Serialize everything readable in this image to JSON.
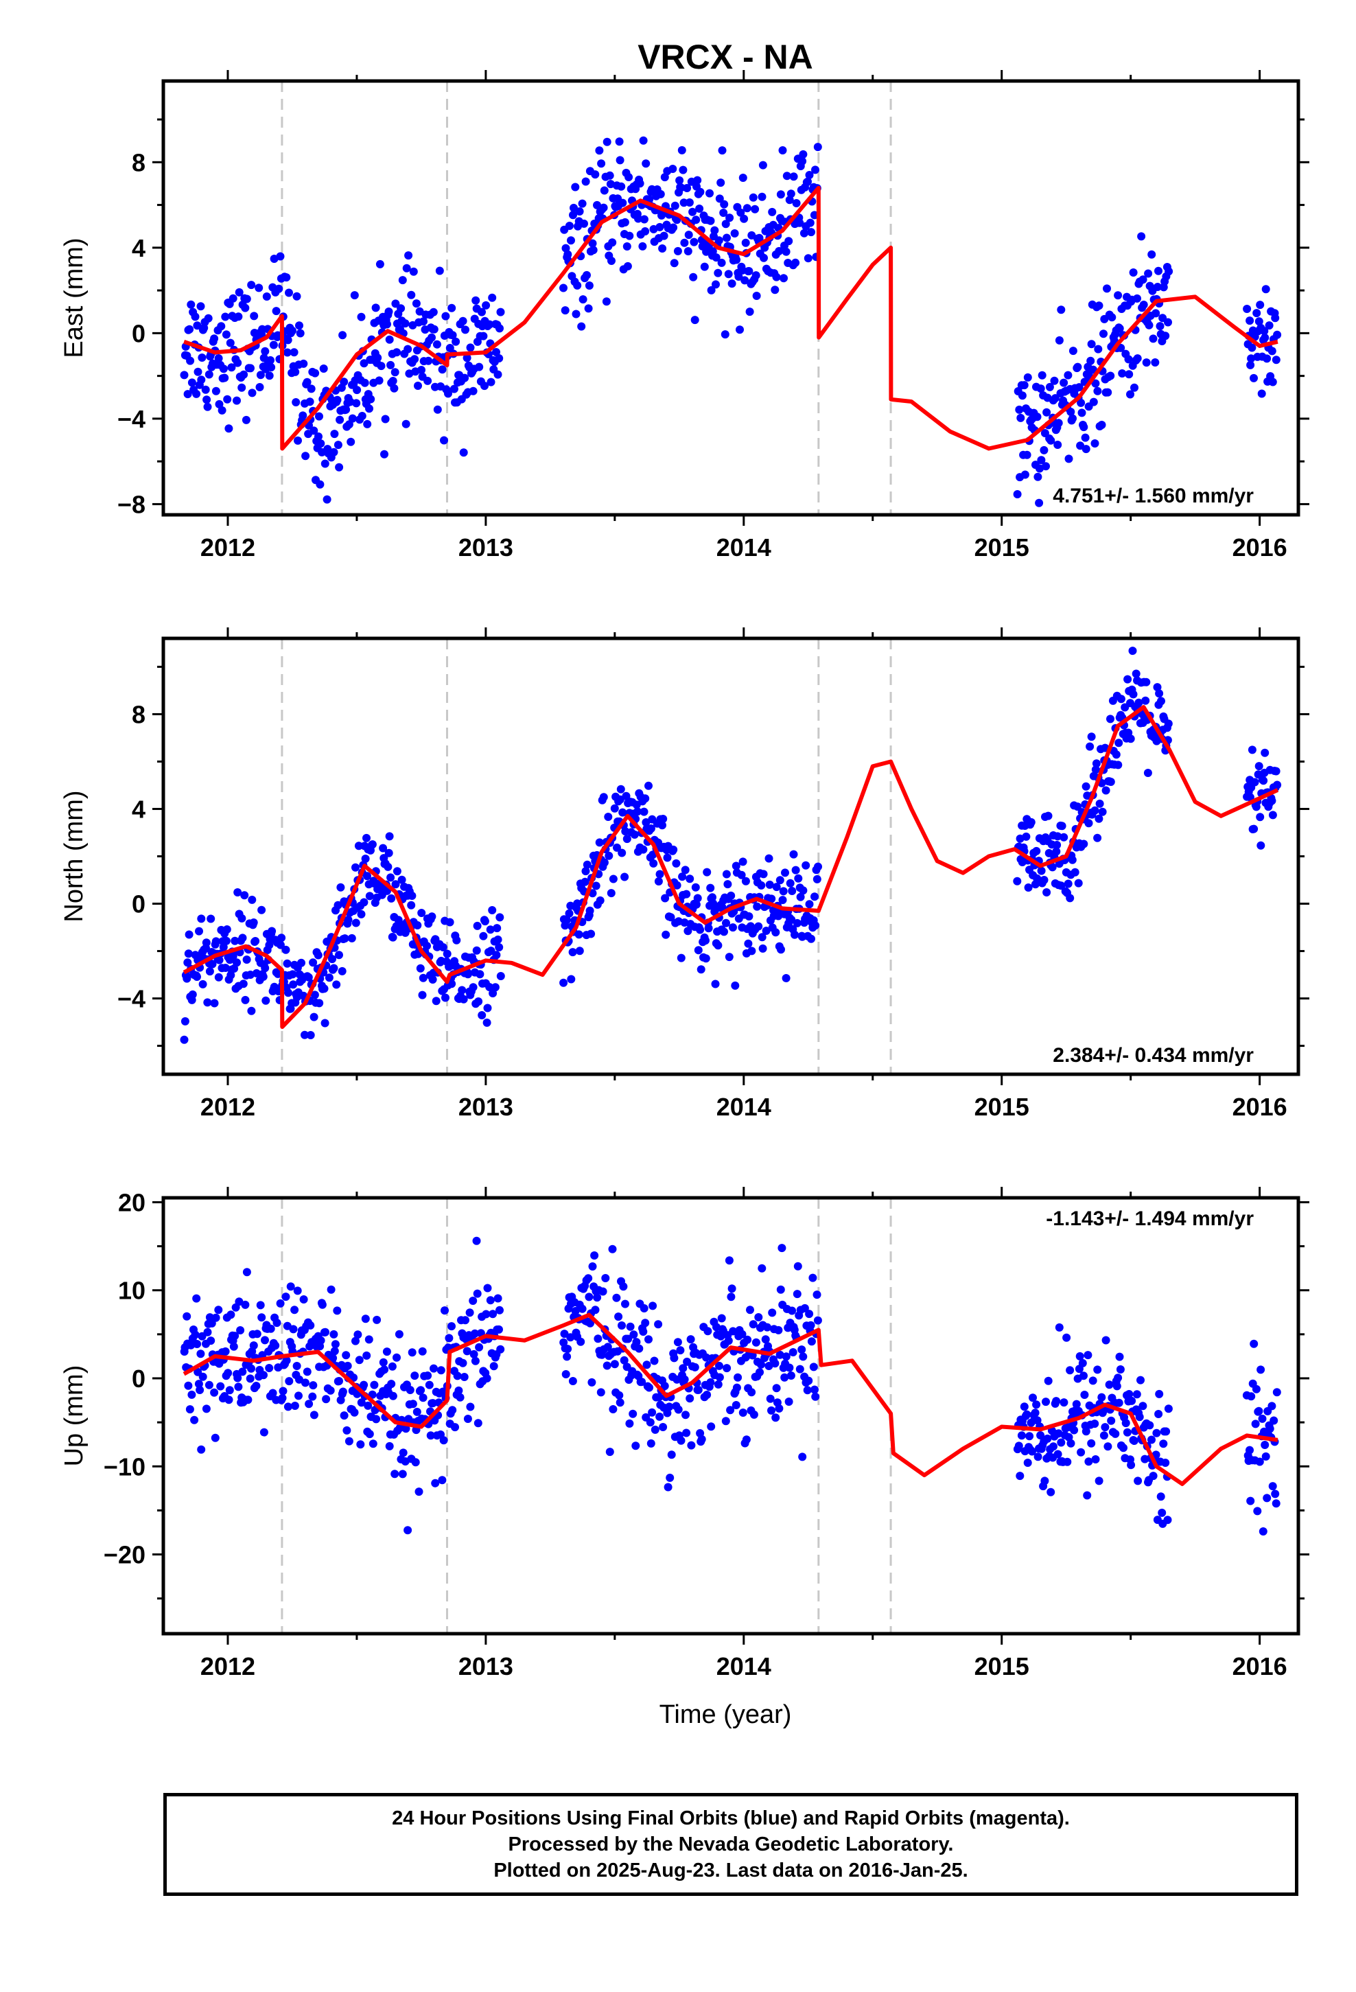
{
  "chart_data": [
    {
      "type": "scatter",
      "title": "VRCX - NA",
      "xlabel": "",
      "ylabel": "East (mm)",
      "xlim": [
        2011.75,
        2016.15
      ],
      "ylim": [
        -8.5,
        11.8
      ],
      "xticks": [
        2012,
        2013,
        2014,
        2015,
        2016
      ],
      "yticks": [
        -8,
        -4,
        0,
        4,
        8
      ],
      "grid": false,
      "rate_label": "4.751+/- 1.560 mm/yr",
      "rate_position": "bottom-right",
      "breaks": [
        2012.21,
        2012.85,
        2014.29,
        2014.57
      ],
      "colors": {
        "points": "#0000ff",
        "model": "#ff0000",
        "breaks": "#c8c8c8"
      },
      "data_segments": [
        [
          2011.83,
          2012.21
        ],
        [
          2012.21,
          2013.06
        ],
        [
          2013.3,
          2014.29
        ],
        [
          2015.06,
          2015.65
        ],
        [
          2015.95,
          2016.07
        ]
      ],
      "model": {
        "x": [
          2011.83,
          2011.95,
          2012.05,
          2012.15,
          2012.21,
          2012.211,
          2012.35,
          2012.5,
          2012.62,
          2012.75,
          2012.85,
          2012.851,
          2013.0,
          2013.15,
          2013.3,
          2013.45,
          2013.6,
          2013.75,
          2013.9,
          2014.0,
          2014.15,
          2014.29,
          2014.291,
          2014.4,
          2014.5,
          2014.57,
          2014.571,
          2014.65,
          2014.8,
          2014.95,
          2015.1,
          2015.3,
          2015.45,
          2015.6,
          2015.75,
          2015.9,
          2016.0,
          2016.07
        ],
        "y": [
          -0.4,
          -0.9,
          -0.8,
          -0.2,
          0.8,
          -5.4,
          -3.5,
          -1.0,
          0.1,
          -0.6,
          -1.5,
          -1.0,
          -0.9,
          0.5,
          2.8,
          5.2,
          6.2,
          5.5,
          4.0,
          3.7,
          4.8,
          6.8,
          -0.2,
          1.6,
          3.2,
          4.0,
          -3.1,
          -3.2,
          -4.6,
          -5.4,
          -5.0,
          -3.0,
          -0.5,
          1.5,
          1.7,
          0.3,
          -0.6,
          -0.4
        ]
      },
      "fit": {
        "pre": {
          "x": [
            2011.83,
            2011.95,
            2012.05,
            2012.15,
            2012.21,
            2012.35,
            2012.5,
            2012.62,
            2012.75,
            2012.85,
            2013.0,
            2013.15,
            2013.3,
            2013.45,
            2013.6,
            2013.75,
            2013.9,
            2014.0,
            2014.15,
            2014.29
          ],
          "y": [
            -0.4,
            -0.9,
            -0.8,
            -0.2,
            0.8,
            -4.9,
            -2.4,
            -0.2,
            -0.6,
            -1.5,
            -0.9,
            0.5,
            2.8,
            5.2,
            6.2,
            5.5,
            4.0,
            3.7,
            4.8,
            6.8
          ]
        },
        "post": {
          "x": [
            2015.06,
            2015.2,
            2015.35,
            2015.5,
            2015.65,
            2015.8,
            2015.95,
            2016.07
          ],
          "y": [
            -4.8,
            -4.0,
            -2.2,
            0.3,
            1.8,
            1.4,
            0.0,
            -0.5
          ]
        }
      },
      "scatter_sigma": 1.5
    },
    {
      "type": "scatter",
      "title": "",
      "xlabel": "",
      "ylabel": "North (mm)",
      "xlim": [
        2011.75,
        2016.15
      ],
      "ylim": [
        -7.2,
        11.2
      ],
      "xticks": [
        2012,
        2013,
        2014,
        2015,
        2016
      ],
      "yticks": [
        -4,
        0,
        4,
        8
      ],
      "grid": false,
      "rate_label": "2.384+/- 0.434 mm/yr",
      "rate_position": "bottom-right",
      "breaks": [
        2012.21,
        2012.85,
        2014.29,
        2014.57
      ],
      "colors": {
        "points": "#0000ff",
        "model": "#ff0000",
        "breaks": "#c8c8c8"
      },
      "data_segments": [
        [
          2011.83,
          2012.21
        ],
        [
          2012.21,
          2013.06
        ],
        [
          2013.3,
          2014.29
        ],
        [
          2015.06,
          2015.65
        ],
        [
          2015.95,
          2016.07
        ]
      ],
      "model": {
        "x": [
          2011.83,
          2011.95,
          2012.07,
          2012.15,
          2012.21,
          2012.211,
          2012.3,
          2012.4,
          2012.53,
          2012.65,
          2012.75,
          2012.85,
          2012.86,
          2013.0,
          2013.1,
          2013.22,
          2013.35,
          2013.45,
          2013.55,
          2013.65,
          2013.75,
          2013.85,
          2013.95,
          2014.05,
          2014.15,
          2014.29,
          2014.4,
          2014.5,
          2014.57,
          2014.65,
          2014.75,
          2014.85,
          2014.95,
          2015.05,
          2015.15,
          2015.25,
          2015.35,
          2015.45,
          2015.55,
          2015.65,
          2015.75,
          2015.85,
          2015.95,
          2016.07
        ],
        "y": [
          -2.9,
          -2.2,
          -1.8,
          -2.2,
          -2.8,
          -5.2,
          -4.2,
          -1.8,
          1.6,
          0.5,
          -2.0,
          -3.3,
          -3.0,
          -2.4,
          -2.5,
          -3.0,
          -1.0,
          2.2,
          3.7,
          2.5,
          0.0,
          -0.8,
          -0.2,
          0.2,
          -0.2,
          -0.3,
          2.8,
          5.8,
          6.0,
          4.0,
          1.8,
          1.3,
          2.0,
          2.3,
          1.6,
          2.0,
          4.5,
          7.5,
          8.3,
          6.5,
          4.3,
          3.7,
          4.2,
          4.8
        ]
      },
      "fit": {
        "pre": {
          "x": [
            2011.83,
            2011.95,
            2012.07,
            2012.15,
            2012.21,
            2012.3,
            2012.4,
            2012.53,
            2012.65,
            2012.75,
            2012.85,
            2013.0,
            2013.1,
            2013.22,
            2013.35,
            2013.45,
            2013.55,
            2013.65,
            2013.75,
            2013.85,
            2013.95,
            2014.05,
            2014.15,
            2014.29
          ],
          "y": [
            -2.9,
            -2.2,
            -1.8,
            -2.2,
            -2.8,
            -4.6,
            -2.8,
            1.6,
            0.5,
            -2.0,
            -3.1,
            -2.4,
            -2.5,
            -3.0,
            -1.0,
            2.2,
            3.7,
            2.5,
            0.0,
            -0.8,
            -0.2,
            0.2,
            -0.2,
            -0.3
          ]
        },
        "post": {
          "x": [
            2015.06,
            2015.15,
            2015.25,
            2015.35,
            2015.45,
            2015.55,
            2015.65,
            2015.75,
            2015.85,
            2015.95,
            2016.07
          ],
          "y": [
            2.2,
            1.6,
            2.0,
            4.5,
            7.5,
            8.3,
            6.5,
            4.3,
            3.7,
            4.2,
            4.8
          ]
        }
      },
      "scatter_sigma": 1.0
    },
    {
      "type": "scatter",
      "title": "",
      "xlabel": "Time (year)",
      "ylabel": "Up (mm)",
      "xlim": [
        2011.75,
        2016.15
      ],
      "ylim": [
        -29,
        20.5
      ],
      "xticks": [
        2012,
        2013,
        2014,
        2015,
        2016
      ],
      "yticks": [
        -20,
        -10,
        0,
        10,
        20
      ],
      "grid": false,
      "rate_label": "-1.143+/- 1.494 mm/yr",
      "rate_position": "top-right",
      "breaks": [
        2012.21,
        2012.85,
        2014.29,
        2014.57
      ],
      "colors": {
        "points": "#0000ff",
        "model": "#ff0000",
        "breaks": "#c8c8c8"
      },
      "data_segments": [
        [
          2011.83,
          2012.21
        ],
        [
          2012.21,
          2013.06
        ],
        [
          2013.3,
          2014.29
        ],
        [
          2015.06,
          2015.65
        ],
        [
          2015.95,
          2016.07
        ]
      ],
      "model": {
        "x": [
          2011.83,
          2011.95,
          2012.1,
          2012.21,
          2012.35,
          2012.5,
          2012.65,
          2012.75,
          2012.85,
          2012.86,
          2013.0,
          2013.15,
          2013.3,
          2013.4,
          2013.55,
          2013.7,
          2013.8,
          2013.95,
          2014.1,
          2014.29,
          2014.3,
          2014.42,
          2014.57,
          2014.58,
          2014.7,
          2014.85,
          2015.0,
          2015.15,
          2015.3,
          2015.4,
          2015.5,
          2015.6,
          2015.7,
          2015.85,
          2015.95,
          2016.07
        ],
        "y": [
          0.5,
          2.5,
          2.0,
          2.5,
          3.0,
          -1.0,
          -5.0,
          -5.5,
          -2.5,
          3.0,
          4.8,
          4.3,
          6.0,
          7.2,
          3.0,
          -2.0,
          -0.5,
          3.5,
          2.8,
          5.5,
          1.5,
          2.0,
          -4.0,
          -8.5,
          -11.0,
          -8.0,
          -5.5,
          -5.8,
          -4.5,
          -3.0,
          -4.0,
          -10.0,
          -12.0,
          -8.0,
          -6.5,
          -7.0
        ]
      },
      "fit": {
        "pre": {
          "x": [
            2011.83,
            2011.95,
            2012.1,
            2012.21,
            2012.35,
            2012.5,
            2012.65,
            2012.75,
            2012.85,
            2013.0,
            2013.15,
            2013.3,
            2013.4,
            2013.55,
            2013.7,
            2013.8,
            2013.95,
            2014.1,
            2014.29
          ],
          "y": [
            0.5,
            2.5,
            2.0,
            2.5,
            3.0,
            -1.0,
            -5.0,
            -5.5,
            -2.5,
            4.8,
            4.3,
            6.0,
            7.2,
            3.0,
            -2.0,
            -0.5,
            3.5,
            2.8,
            5.5
          ]
        },
        "post": {
          "x": [
            2015.06,
            2015.15,
            2015.3,
            2015.4,
            2015.5,
            2015.6,
            2015.7,
            2015.85,
            2015.95,
            2016.07
          ],
          "y": [
            -5.8,
            -5.8,
            -4.5,
            -3.0,
            -4.0,
            -10.0,
            -12.0,
            -8.0,
            -6.5,
            -7.0
          ]
        }
      },
      "scatter_sigma": 4.0
    }
  ],
  "footer": {
    "line1": "24 Hour Positions Using Final Orbits (blue) and Rapid Orbits (magenta).",
    "line2": "Processed by the Nevada Geodetic Laboratory.",
    "line3": "Plotted on 2025-Aug-23. Last data on 2016-Jan-25."
  }
}
